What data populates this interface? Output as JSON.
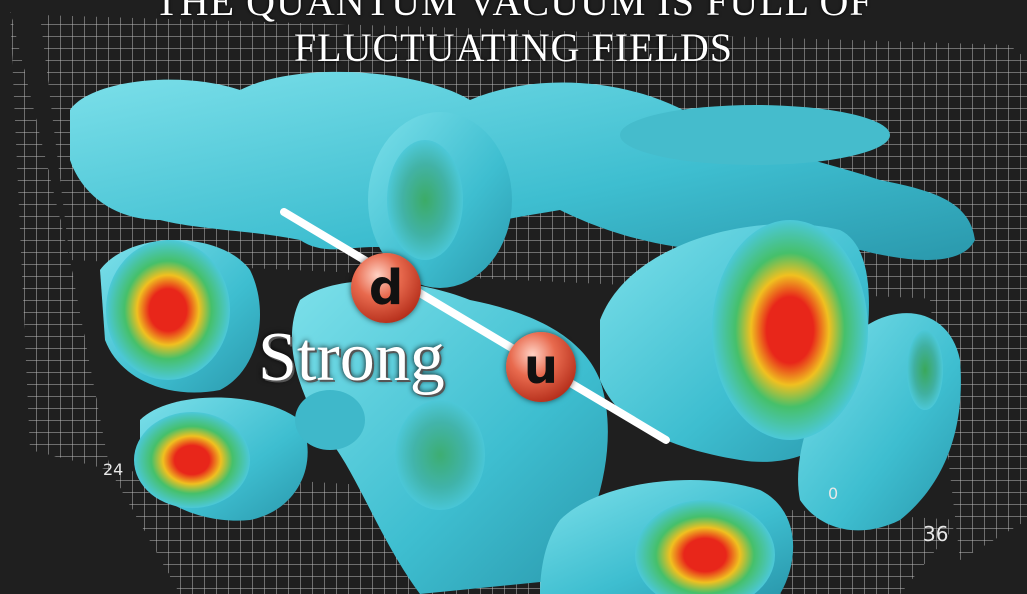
{
  "title": {
    "line1": "THE QUANTUM VACUUM IS FULL OF",
    "line2": "FLUCTUATING FIELDS"
  },
  "label": "Strong",
  "quarks": {
    "first": "d",
    "second": "u"
  },
  "axis_ticks": {
    "right_bottom": "36",
    "left": "24",
    "front": "0"
  },
  "colors": {
    "background": "#1f1f1f",
    "surface": "#4cc8d8",
    "hot": "#e8261a",
    "warm": "#f0c020",
    "mid": "#46c06a",
    "grid": "#d8d8d8"
  }
}
